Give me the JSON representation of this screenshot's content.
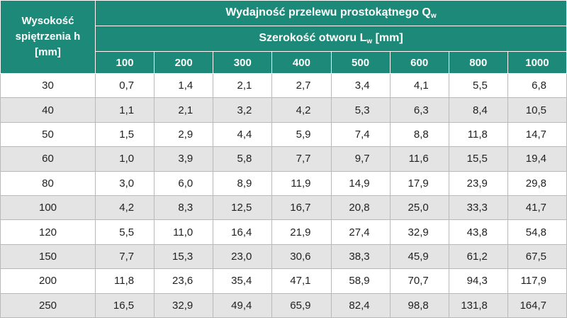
{
  "header": {
    "row_label": [
      "Wysokość",
      "spiętrzenia h",
      "[mm]"
    ],
    "title": {
      "main": "Wydajność przelewu prostokątnego Q",
      "sub": "w"
    },
    "subtitle": {
      "main": "Szerokość otworu L",
      "sub": "w",
      "after": " [mm]"
    },
    "columns": [
      "100",
      "200",
      "300",
      "400",
      "500",
      "600",
      "800",
      "1000"
    ]
  },
  "table": {
    "rows": [
      [
        "30",
        "0,7",
        "1,4",
        "2,1",
        "2,7",
        "3,4",
        "4,1",
        "5,5",
        "6,8"
      ],
      [
        "40",
        "1,1",
        "2,1",
        "3,2",
        "4,2",
        "5,3",
        "6,3",
        "8,4",
        "10,5"
      ],
      [
        "50",
        "1,5",
        "2,9",
        "4,4",
        "5,9",
        "7,4",
        "8,8",
        "11,8",
        "14,7"
      ],
      [
        "60",
        "1,0",
        "3,9",
        "5,8",
        "7,7",
        "9,7",
        "11,6",
        "15,5",
        "19,4"
      ],
      [
        "80",
        "3,0",
        "6,0",
        "8,9",
        "11,9",
        "14,9",
        "17,9",
        "23,9",
        "29,8"
      ],
      [
        "100",
        "4,2",
        "8,3",
        "12,5",
        "16,7",
        "20,8",
        "25,0",
        "33,3",
        "41,7"
      ],
      [
        "120",
        "5,5",
        "11,0",
        "16,4",
        "21,9",
        "27,4",
        "32,9",
        "43,8",
        "54,8"
      ],
      [
        "150",
        "7,7",
        "15,3",
        "23,0",
        "30,6",
        "38,3",
        "45,9",
        "61,2",
        "67,5"
      ],
      [
        "200",
        "11,8",
        "23,6",
        "35,4",
        "47,1",
        "58,9",
        "70,7",
        "94,3",
        "117,9"
      ],
      [
        "250",
        "16,5",
        "32,9",
        "49,4",
        "65,9",
        "82,4",
        "98,8",
        "131,8",
        "164,7"
      ]
    ]
  }
}
